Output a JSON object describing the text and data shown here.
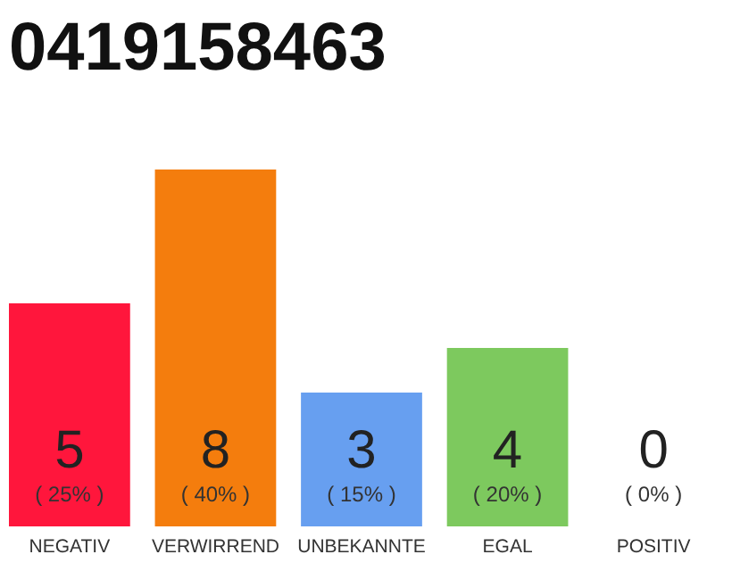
{
  "chart_data": {
    "type": "bar",
    "title": "0419158463",
    "categories": [
      "NEGATIV",
      "VERWIRREND",
      "UNBEKANNTE",
      "EGAL",
      "POSITIV"
    ],
    "values": [
      5,
      8,
      3,
      4,
      0
    ],
    "colors": [
      "#ff163c",
      "#f47d0d",
      "#679ff0",
      "#7dc95e",
      "#2aa84a"
    ],
    "ylim": [
      0,
      8
    ],
    "tick_labels": "x",
    "grid": false,
    "data_labels": true,
    "annotations": [
      "( 25% )",
      "( 40% )",
      "( 15% )",
      "( 20% )",
      "( 0% )"
    ]
  }
}
